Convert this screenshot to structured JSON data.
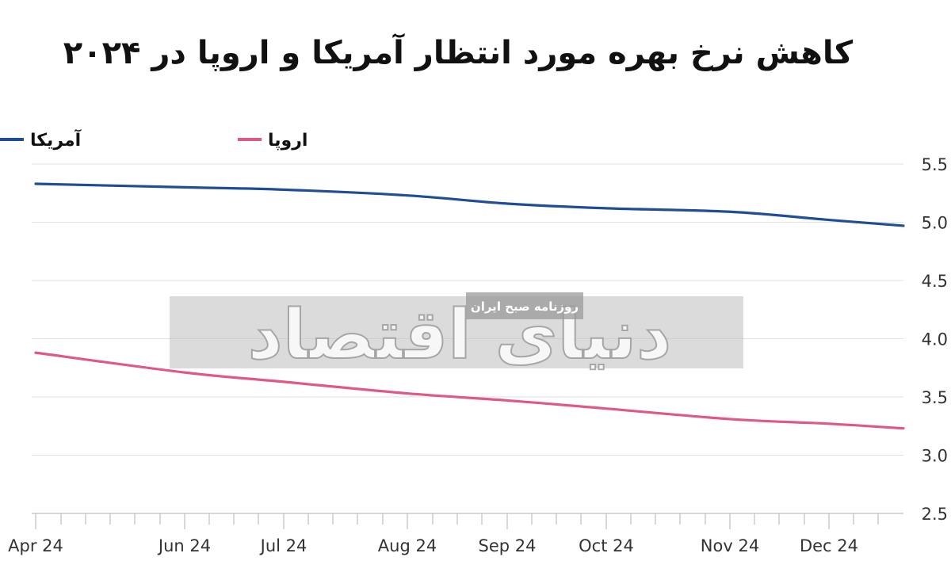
{
  "chart_data": {
    "type": "line",
    "title": "کاهش نرخ بهره مورد انتظار آمریکا و اروپا در ۲۰۲۴",
    "xlabel": "",
    "ylabel": "",
    "x_tick_labels": [
      "Apr 24",
      "Jun 24",
      "Jul 24",
      "Aug 24",
      "Sep 24",
      "Oct 24",
      "Nov 24",
      "Dec 24"
    ],
    "y_ticks": [
      2.5,
      3.0,
      3.5,
      4.0,
      4.5,
      5.0,
      5.5
    ],
    "y_tick_labels": [
      "2.5",
      "3.0",
      "3.5",
      "4.0",
      "4.5",
      "5.0",
      "5.5"
    ],
    "ylim": [
      2.5,
      5.5
    ],
    "grid": true,
    "legend_position": "top",
    "colors": {
      "usa": "#1f4e96",
      "europe": "#e0578a"
    },
    "series": [
      {
        "name": "آمریکا",
        "color": "#1f4e96",
        "points": [
          [
            "Apr 24",
            5.33
          ],
          [
            "Jun 24",
            5.3
          ],
          [
            "Jul 24",
            5.28
          ],
          [
            "Aug 24",
            5.23
          ],
          [
            "Sep 24",
            5.16
          ],
          [
            "Oct 24",
            5.12
          ],
          [
            "Nov 24",
            5.09
          ],
          [
            "Dec 24",
            5.02
          ],
          [
            "end",
            4.97
          ]
        ]
      },
      {
        "name": "اروپا",
        "color": "#e0578a",
        "points": [
          [
            "Apr 24",
            3.88
          ],
          [
            "Jun 24",
            3.71
          ],
          [
            "Jul 24",
            3.63
          ],
          [
            "Aug 24",
            3.53
          ],
          [
            "Sep 24",
            3.47
          ],
          [
            "Oct 24",
            3.4
          ],
          [
            "Nov 24",
            3.31
          ],
          [
            "Dec 24",
            3.27
          ],
          [
            "end",
            3.23
          ]
        ]
      }
    ]
  },
  "watermark": {
    "logo_text": "دنیای اقتصاد",
    "tagline": "روزنامه صبح ایران"
  }
}
